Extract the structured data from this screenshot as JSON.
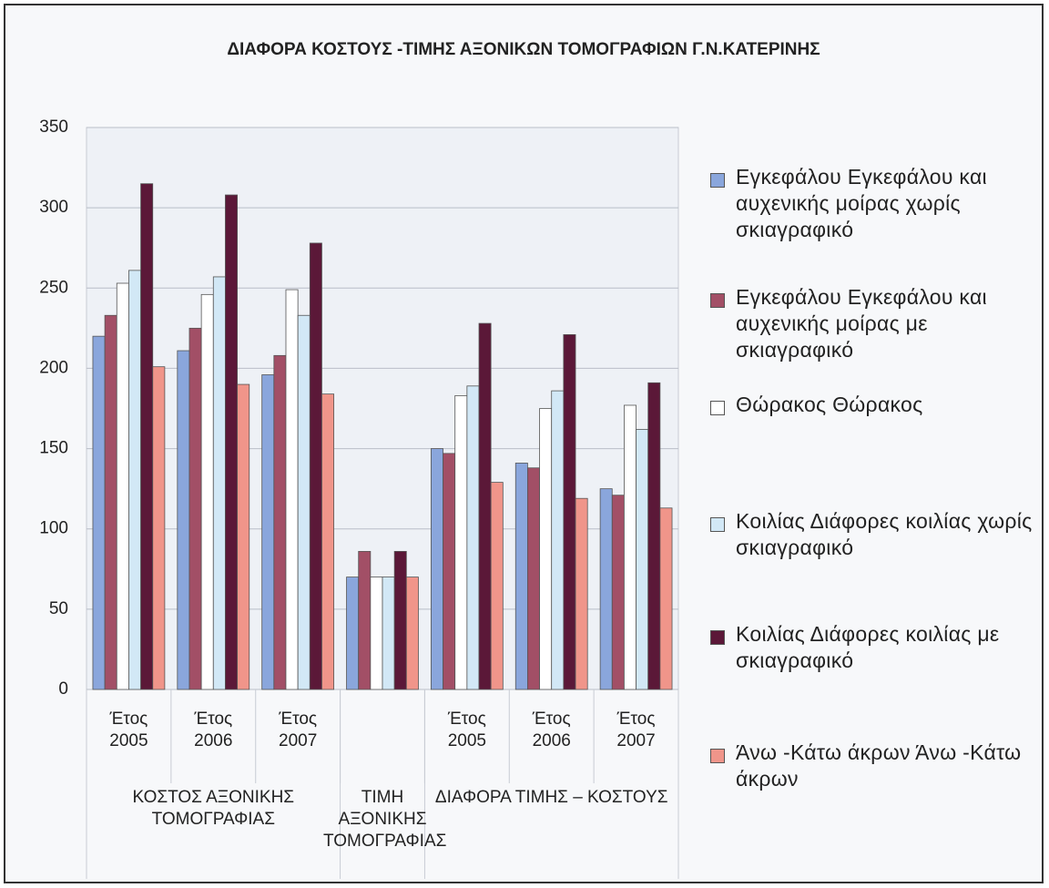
{
  "chart_data": {
    "type": "bar",
    "title": "ΔΙΑΦΟΡΑ ΚΟΣΤΟΥΣ -ΤΙΜΗΣ ΑΞΟΝΙΚΩΝ ΤΟΜΟΓΡΑΦΙΩΝ Γ.Ν.ΚΑΤΕΡΙΝΗΣ",
    "categories": [
      "Έτος 2005",
      "Έτος 2006",
      "Έτος 2007",
      null,
      "Έτος 2005",
      "Έτος 2006",
      "Έτος 2007"
    ],
    "groups": [
      "ΚΟΣΤΟΣ ΑΞΟΝΙΚΗΣ ΤΟΜΟΓΡΑΦΙΑΣ",
      "ΤΙΜΗ ΑΞΟΝΙΚΗΣ ΤΟΜΟΓΡΑΦΙΑΣ",
      "ΔΙΑΦΟΡΑ ΤΙΜΗΣ – ΚΟΣΤΟΥΣ"
    ],
    "series": [
      {
        "name": "Εγκεφάλου Εγκεφάλου και αυχενικής μοίρας χωρίς σκιαγραφικό",
        "color": "#8aa6dc",
        "values": [
          220,
          211,
          196,
          70,
          150,
          141,
          125
        ]
      },
      {
        "name": "Εγκεφάλου Εγκεφάλου και αυχενικής μοίρας με σκιαγραφικό",
        "color": "#a24f66",
        "values": [
          233,
          225,
          208,
          86,
          147,
          138,
          121
        ]
      },
      {
        "name": "Θώρακος Θώρακος",
        "color": "#ffffff",
        "values": [
          253,
          246,
          249,
          70,
          183,
          175,
          177
        ]
      },
      {
        "name": "Κοιλίας Διάφορες κοιλίας χωρίς σκιαγραφικό",
        "color": "#d2e8f6",
        "values": [
          261,
          257,
          233,
          70,
          189,
          186,
          162
        ]
      },
      {
        "name": "Κοιλίας Διάφορες κοιλίας με σκιαγραφικό",
        "color": "#5b1838",
        "values": [
          315,
          308,
          278,
          86,
          228,
          221,
          191
        ]
      },
      {
        "name": "Άνω -Κάτω άκρων Άνω -Κάτω άκρων",
        "color": "#f0958a",
        "values": [
          201,
          190,
          184,
          70,
          129,
          119,
          113
        ]
      }
    ],
    "ylim": [
      0,
      350
    ],
    "yticks": [
      0,
      50,
      100,
      150,
      200,
      250,
      300,
      350
    ],
    "grid": true,
    "legend": "right"
  }
}
